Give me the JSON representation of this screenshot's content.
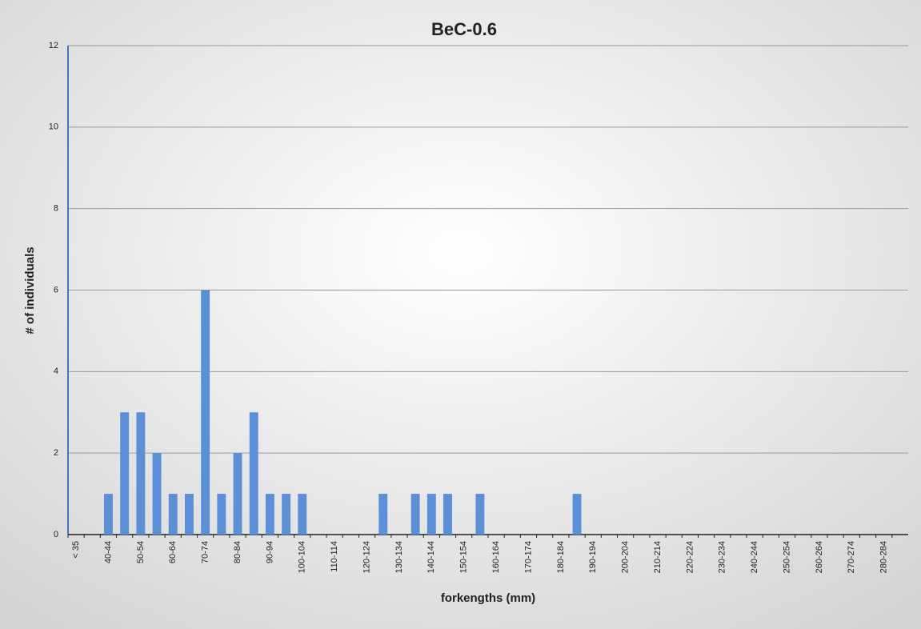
{
  "chart_data": {
    "type": "bar",
    "title": "BeC-0.6",
    "x_label": "forkengths (mm)",
    "y_label": "# of individuals",
    "categories": [
      "< 35",
      null,
      "40-44",
      null,
      "50-54",
      null,
      "60-64",
      null,
      "70-74",
      null,
      "80-84",
      null,
      "90-94",
      null,
      "100-104",
      null,
      "110-114",
      null,
      "120-124",
      null,
      "130-134",
      null,
      "140-144",
      null,
      "150-154",
      null,
      "160-164",
      null,
      "170-174",
      null,
      "180-184",
      null,
      "190-194",
      null,
      "200-204",
      null,
      "210-214",
      null,
      "220-224",
      null,
      "230-234",
      null,
      "240-244",
      null,
      "250-254",
      null,
      "260-264",
      null,
      "270-274",
      null,
      "280-284",
      null
    ],
    "values": [
      0,
      0,
      1,
      3,
      3,
      2,
      1,
      1,
      6,
      1,
      2,
      3,
      1,
      1,
      1,
      0,
      0,
      0,
      0,
      1,
      0,
      1,
      1,
      1,
      0,
      1,
      0,
      0,
      0,
      0,
      0,
      1,
      0,
      0,
      0,
      0,
      0,
      0,
      0,
      0,
      0,
      0,
      0,
      0,
      0,
      0,
      0,
      0,
      0,
      0,
      0,
      0
    ],
    "color": "#5b8fd8",
    "ylim": [
      0,
      12
    ],
    "yticks": [
      0,
      2,
      4,
      6,
      8,
      10,
      12
    ],
    "grid": true
  }
}
